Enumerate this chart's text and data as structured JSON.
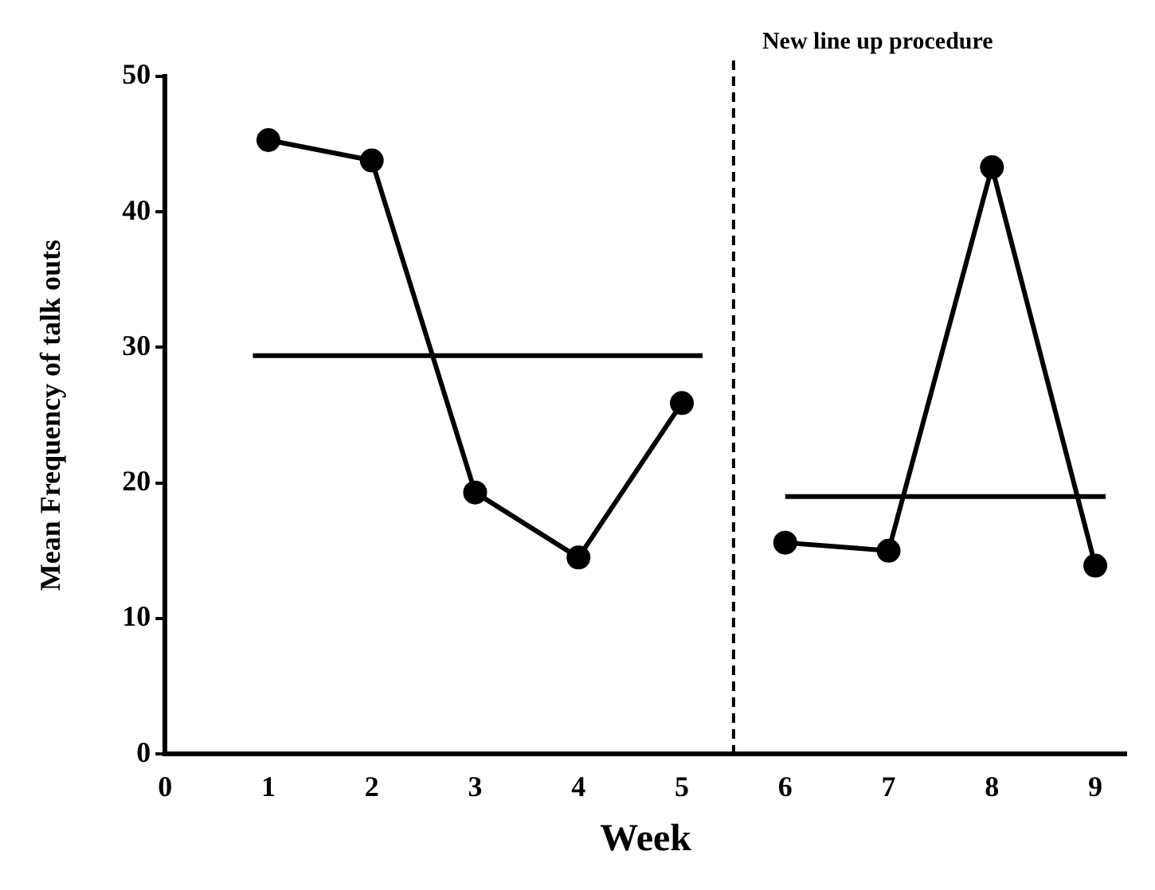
{
  "chart_data": {
    "type": "line",
    "xlabel": "Week",
    "ylabel": "Mean Frequency of talk outs",
    "xlim": [
      0,
      9.3
    ],
    "xticks": [
      0,
      1,
      2,
      3,
      4,
      5,
      6,
      7,
      8,
      9
    ],
    "ylim": [
      0,
      50
    ],
    "yticks": [
      0,
      10,
      20,
      30,
      40,
      50
    ],
    "grid": false,
    "legend": false,
    "series": [
      {
        "color": "#000000",
        "x": [
          1,
          2,
          3,
          4,
          5
        ],
        "values": [
          45.3,
          43.8,
          19.3,
          14.5,
          25.9
        ],
        "marker": "circle"
      },
      {
        "color": "#000000",
        "x": [
          6,
          7,
          8,
          9
        ],
        "values": [
          15.6,
          15,
          43.3,
          13.9
        ],
        "marker": "circle"
      },
      {
        "color": "#000000",
        "x": [
          0.85,
          5.2
        ],
        "values": [
          29.4,
          29.4
        ],
        "marker": "none"
      },
      {
        "color": "#000000",
        "x": [
          6,
          9.1
        ],
        "values": [
          19,
          19
        ],
        "marker": "none"
      }
    ],
    "ref_lines": [
      {
        "axis": "x",
        "value": 5.5,
        "label": "New line up procedure",
        "line_style": "dashed",
        "color": "#000000"
      }
    ]
  }
}
